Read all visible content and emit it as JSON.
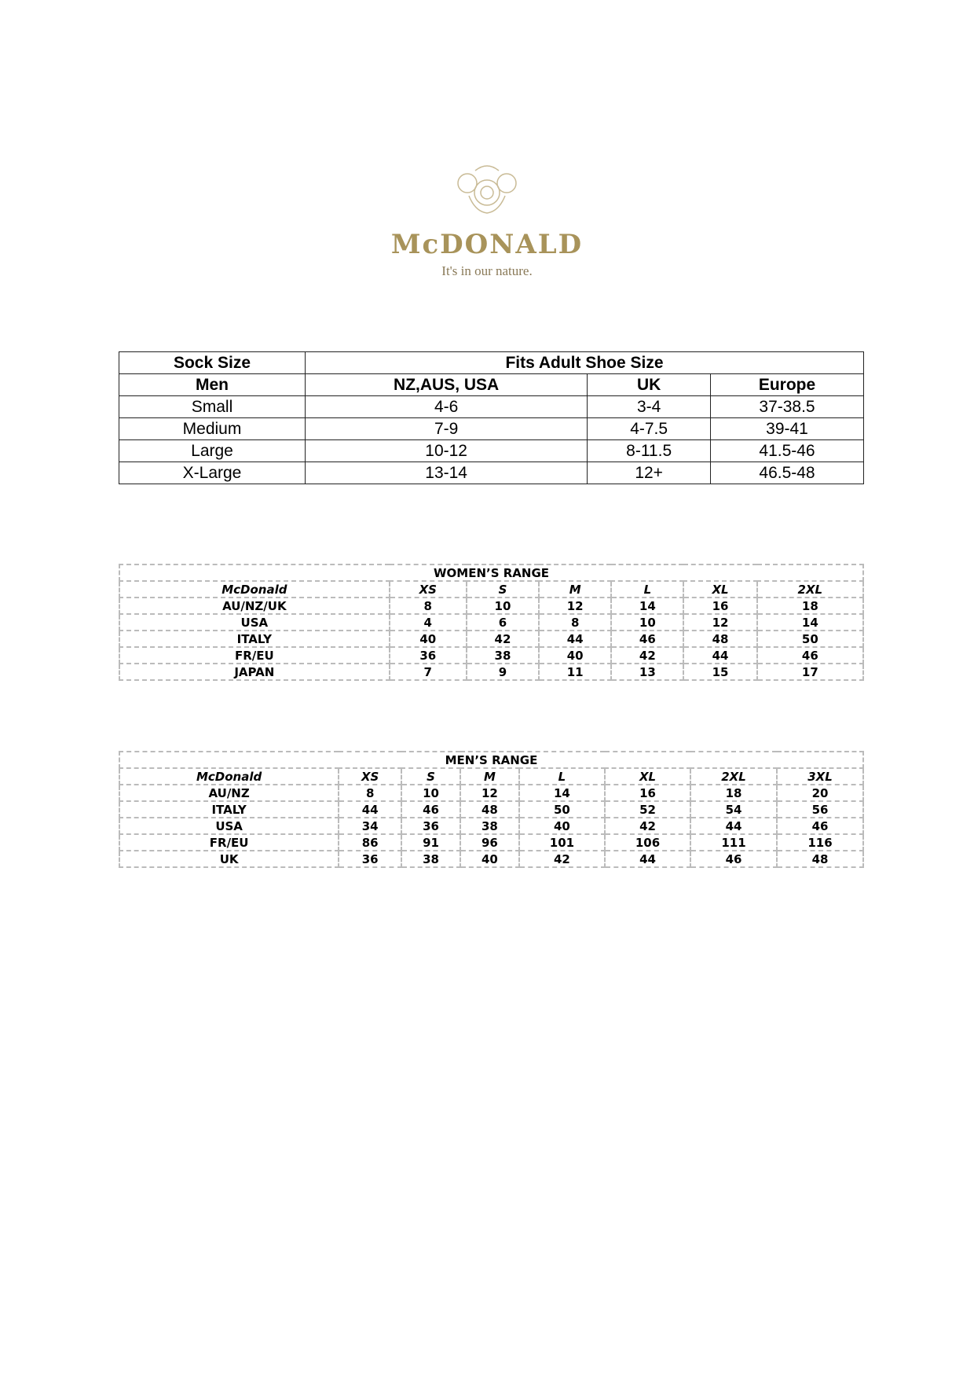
{
  "logo": {
    "brand": "McDONALD",
    "tagline": "It's in our nature.",
    "accent": "#a8935a"
  },
  "sock_table": {
    "header": [
      "Sock Size",
      "Fits Adult Shoe Size"
    ],
    "columns": [
      "Men",
      "NZ,AUS, USA",
      "UK",
      "Europe"
    ],
    "rows": [
      [
        "Small",
        "4-6",
        "3-4",
        "37-38.5"
      ],
      [
        "Medium",
        "7-9",
        "4-7.5",
        "39-41"
      ],
      [
        "Large",
        "10-12",
        "8-11.5",
        "41.5-46"
      ],
      [
        "X-Large",
        "13-14",
        "12+",
        "46.5-48"
      ]
    ]
  },
  "womens_range": {
    "title": "WOMEN’S RANGE",
    "columns": [
      "McDonald",
      "XS",
      "S",
      "M",
      "L",
      "XL",
      "2XL"
    ],
    "rows": [
      [
        "AU/NZ/UK",
        "8",
        "10",
        "12",
        "14",
        "16",
        "18"
      ],
      [
        "USA",
        "4",
        "6",
        "8",
        "10",
        "12",
        "14"
      ],
      [
        "ITALY",
        "40",
        "42",
        "44",
        "46",
        "48",
        "50"
      ],
      [
        "FR/EU",
        "36",
        "38",
        "40",
        "42",
        "44",
        "46"
      ],
      [
        "JAPAN",
        "7",
        "9",
        "11",
        "13",
        "15",
        "17"
      ]
    ]
  },
  "mens_range": {
    "title": "MEN’S RANGE",
    "columns": [
      "McDonald",
      "XS",
      "S",
      "M",
      "L",
      "XL",
      "2XL",
      "3XL"
    ],
    "rows": [
      [
        "AU/NZ",
        "8",
        "10",
        "12",
        "14",
        "16",
        "18",
        "20"
      ],
      [
        "ITALY",
        "44",
        "46",
        "48",
        "50",
        "52",
        "54",
        "56"
      ],
      [
        "USA",
        "34",
        "36",
        "38",
        "40",
        "42",
        "44",
        "46"
      ],
      [
        "FR/EU",
        "86",
        "91",
        "96",
        "101",
        "106",
        "111",
        "116"
      ],
      [
        "UK",
        "36",
        "38",
        "40",
        "42",
        "44",
        "46",
        "48"
      ]
    ]
  }
}
